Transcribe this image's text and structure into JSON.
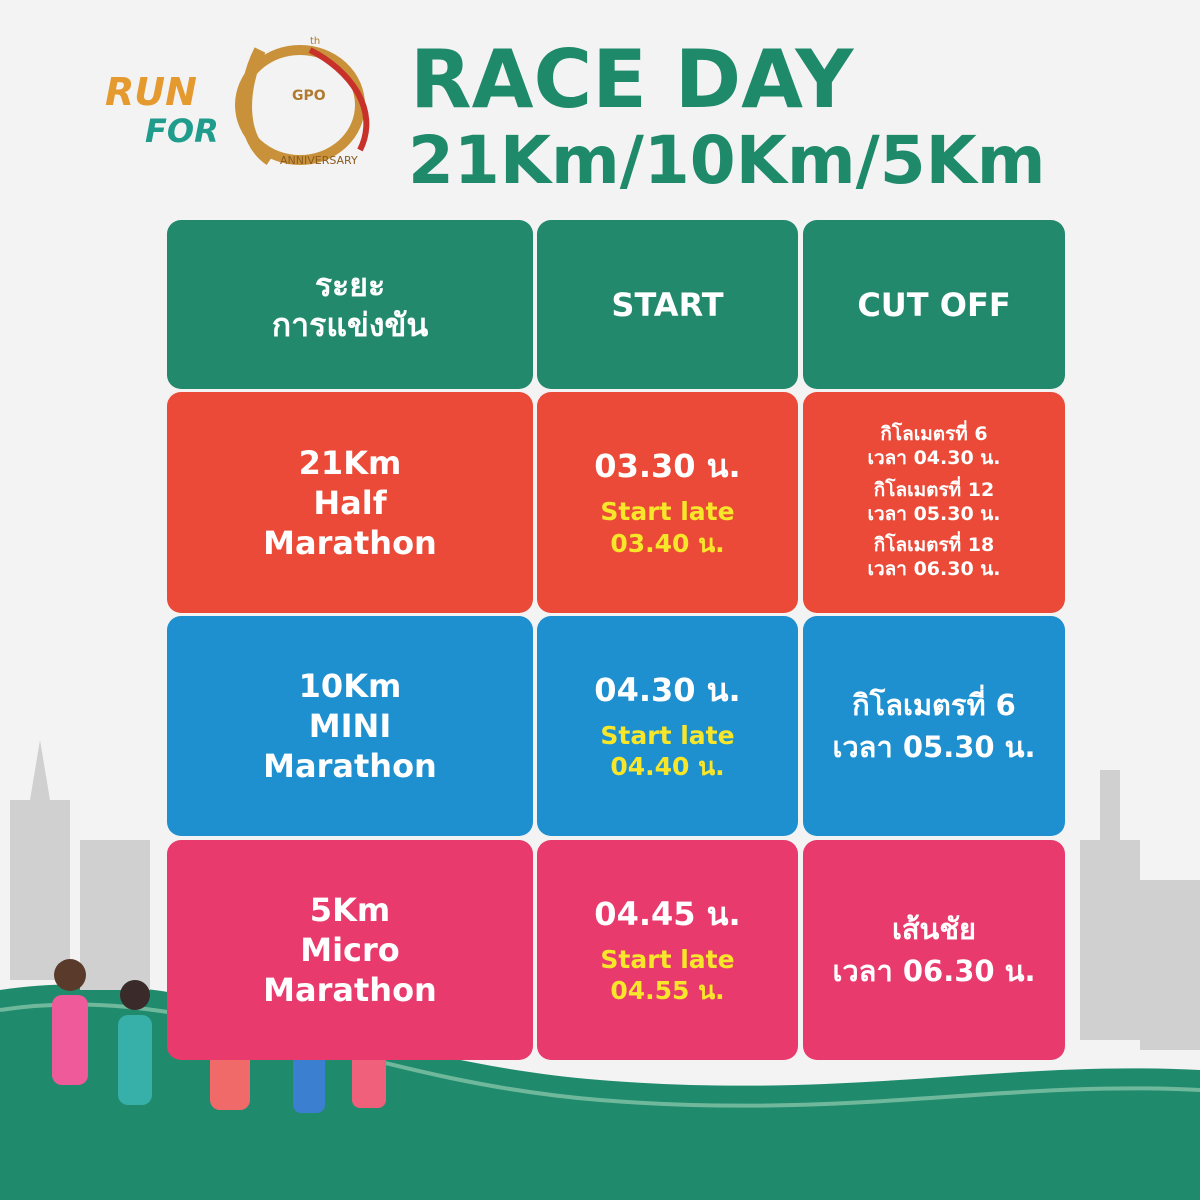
{
  "logo": {
    "run": "RUN",
    "for": "FOR",
    "badge": "GPO",
    "ordinal": "th",
    "anniversary": "ANNIVERSARY"
  },
  "header": {
    "title": "RACE DAY",
    "subtitle": "21Km/10Km/5Km"
  },
  "table": {
    "columns": [
      [
        "ระยะ",
        "การแข่งขัน"
      ],
      [
        "START"
      ],
      [
        "CUT OFF"
      ]
    ],
    "rows": [
      {
        "distance": [
          "21Km",
          "Half",
          "Marathon"
        ],
        "start": "03.30 น.",
        "start_late": [
          "Start late",
          "03.40 น."
        ],
        "cut_off": [
          "กิโลเมตรที่ 6",
          "เวลา 04.30 น.",
          "กิโลเมตรที่ 12",
          "เวลา 05.30 น.",
          "กิโลเมตรที่ 18",
          "เวลา 06.30 น."
        ]
      },
      {
        "distance": [
          "10Km",
          "MINI",
          "Marathon"
        ],
        "start": "04.30 น.",
        "start_late": [
          "Start late",
          "04.40 น."
        ],
        "cut_off": [
          "กิโลเมตรที่ 6",
          "เวลา 05.30 น."
        ]
      },
      {
        "distance": [
          "5Km",
          "Micro",
          "Marathon"
        ],
        "start": "04.45 น.",
        "start_late": [
          "Start late",
          "04.55 น."
        ],
        "cut_off": [
          "เส้นชัย",
          "เวลา 06.30 น."
        ]
      }
    ]
  }
}
